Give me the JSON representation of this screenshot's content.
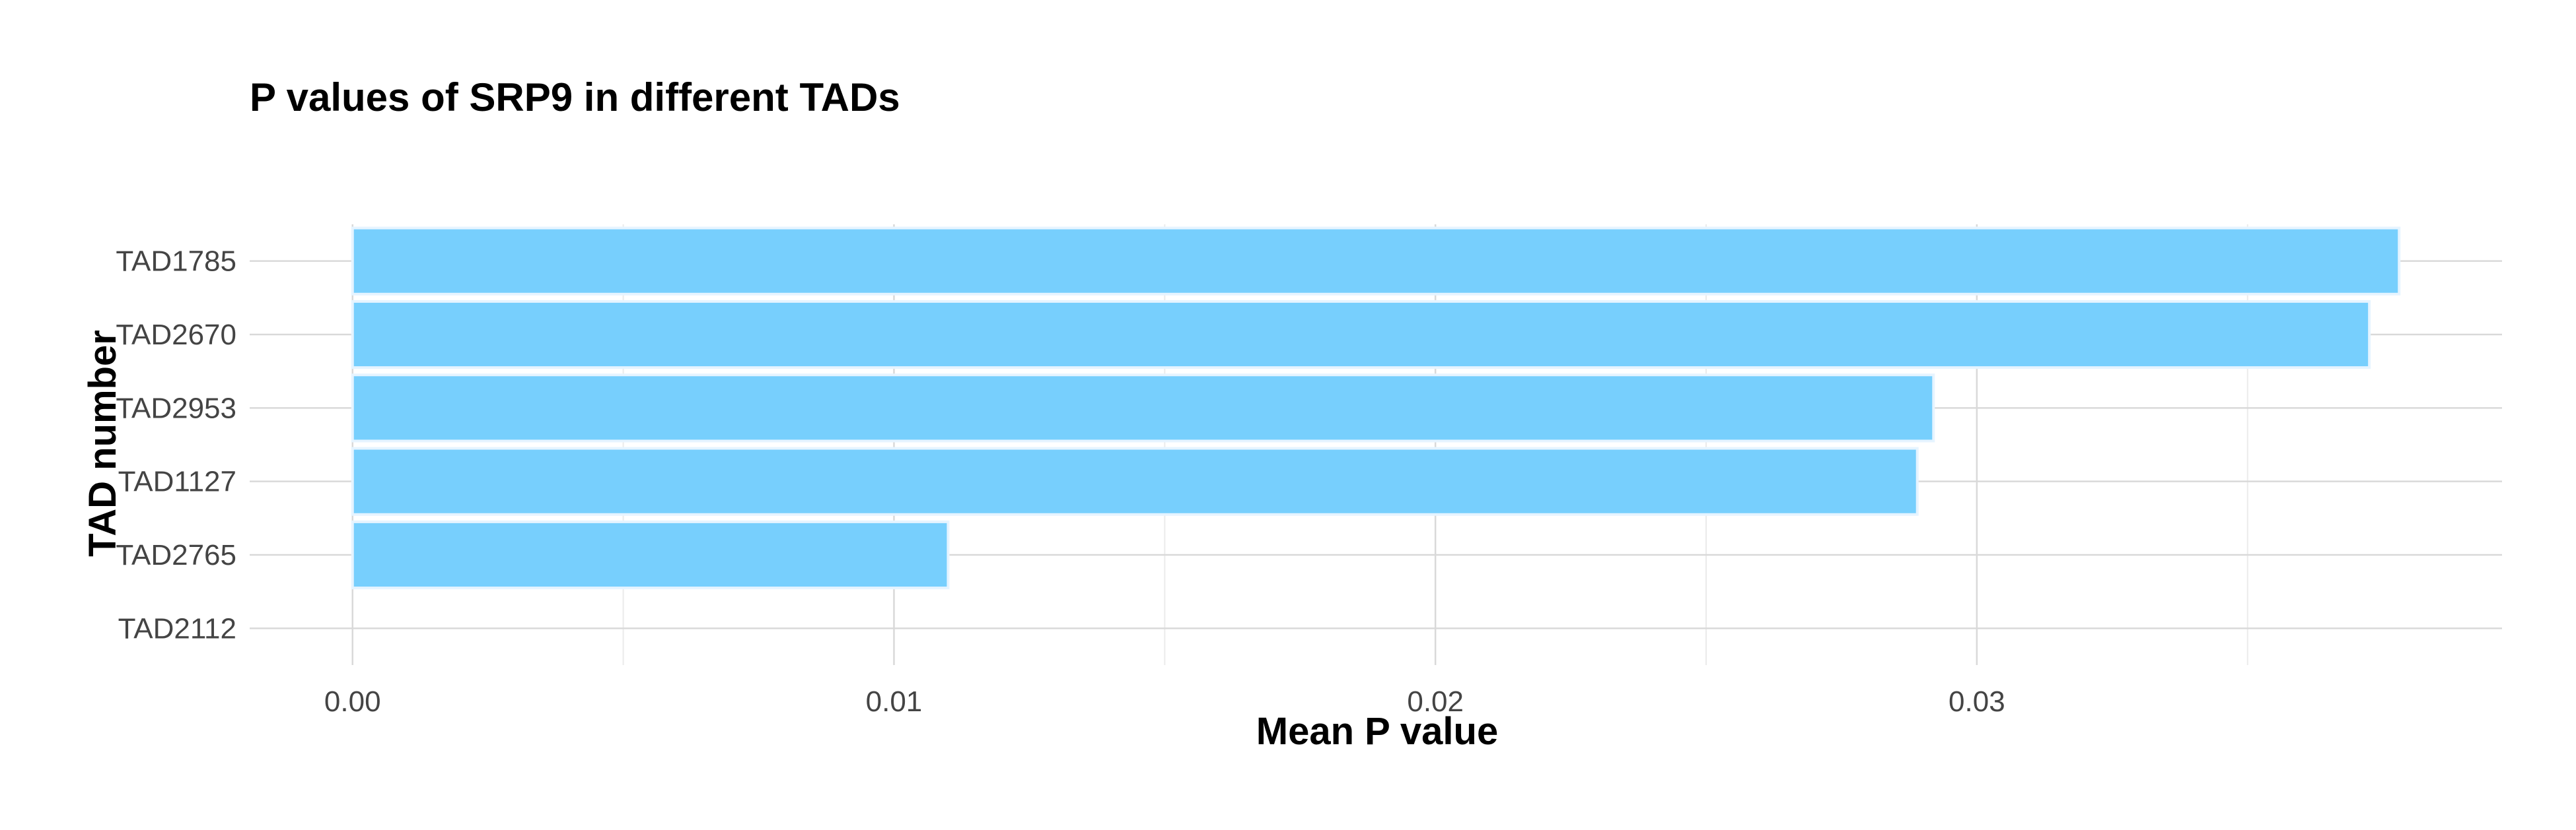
{
  "chart_data": {
    "type": "bar",
    "orientation": "horizontal",
    "title": "P values of SRP9 in different TADs",
    "xlabel": "Mean P value",
    "ylabel": "TAD number",
    "categories": [
      "TAD1785",
      "TAD2670",
      "TAD2953",
      "TAD1127",
      "TAD2765",
      "TAD2112"
    ],
    "values": [
      0.0378,
      0.03725,
      0.0292,
      0.0289,
      0.011,
      0.0
    ],
    "x_ticks": [
      0.0,
      0.01,
      0.02,
      0.03
    ],
    "x_tick_labels": [
      "0.00",
      "0.01",
      "0.02",
      "0.03"
    ],
    "x_minor_ticks": [
      0.005,
      0.015,
      0.025,
      0.035
    ],
    "xlim": [
      -0.0019,
      0.0397
    ],
    "grid": true,
    "legend": "none",
    "bar_color": "#74cefd"
  }
}
